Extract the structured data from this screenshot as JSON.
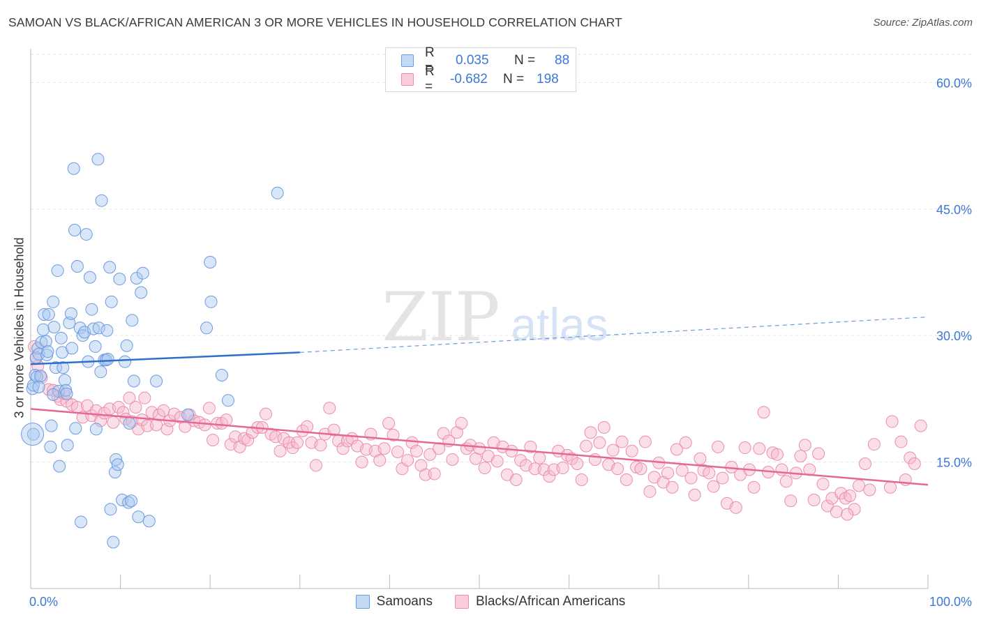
{
  "header": {
    "title": "SAMOAN VS BLACK/AFRICAN AMERICAN 3 OR MORE VEHICLES IN HOUSEHOLD CORRELATION CHART",
    "source": "Source: ZipAtlas.com"
  },
  "watermark": {
    "zip": "ZIP",
    "atlas": "atlas"
  },
  "legend": {
    "rows": [
      {
        "r_label": "R =",
        "r_value": "0.035",
        "n_label": "N =",
        "n_value": "88"
      },
      {
        "r_label": "R =",
        "r_value": "-0.682",
        "n_label": "N =",
        "n_value": "198"
      }
    ]
  },
  "bottom_legend": {
    "samoans": "Samoans",
    "blacks": "Blacks/African Americans"
  },
  "colors": {
    "samoan_fill": "#a9c8ef",
    "samoan_stroke": "#6a9be0",
    "samoan_line": "#2e6fcc",
    "black_fill": "#f6b8cb",
    "black_stroke": "#ec8dab",
    "black_line": "#e4679a",
    "tick_label": "#3b78d8",
    "grid": "#e2e2e2"
  },
  "chart_data": {
    "type": "scatter",
    "title": "SAMOAN VS BLACK/AFRICAN AMERICAN 3 OR MORE VEHICLES IN HOUSEHOLD CORRELATION CHART",
    "xlabel": "",
    "ylabel": "3 or more Vehicles in Household",
    "xlim": [
      0,
      100
    ],
    "ylim": [
      0,
      64
    ],
    "x_tick_labels": [
      "0.0%",
      "100.0%"
    ],
    "y_ticks": [
      15,
      30,
      45,
      60
    ],
    "y_tick_labels": [
      "15.0%",
      "30.0%",
      "45.0%",
      "60.0%"
    ],
    "grid": true,
    "series": [
      {
        "name": "Samoans",
        "r": 0.035,
        "n": 88,
        "trend": {
          "x0": 0,
          "y0": 26.6,
          "x1": 30,
          "y1": 28.0,
          "dashed_to_x": 100,
          "dashed_to_y": 32.2
        },
        "points": [
          [
            0.2,
            23.7
          ],
          [
            0.3,
            24.1
          ],
          [
            0.3,
            18.3
          ],
          [
            0.5,
            25.3
          ],
          [
            0.6,
            27.4
          ],
          [
            0.7,
            25.1
          ],
          [
            0.8,
            28.5
          ],
          [
            0.9,
            27.8
          ],
          [
            1.1,
            25.2
          ],
          [
            1.2,
            29.2
          ],
          [
            1.4,
            30.7
          ],
          [
            1.5,
            32.5
          ],
          [
            1.7,
            29.3
          ],
          [
            1.8,
            27.7
          ],
          [
            1.9,
            28.1
          ],
          [
            2.0,
            32.5
          ],
          [
            2.2,
            16.8
          ],
          [
            2.3,
            19.3
          ],
          [
            2.5,
            34.0
          ],
          [
            2.6,
            31.0
          ],
          [
            2.8,
            26.2
          ],
          [
            3.0,
            37.7
          ],
          [
            3.1,
            23.4
          ],
          [
            3.2,
            14.5
          ],
          [
            3.4,
            29.7
          ],
          [
            3.5,
            28.0
          ],
          [
            3.6,
            26.2
          ],
          [
            3.8,
            24.7
          ],
          [
            3.9,
            23.5
          ],
          [
            4.0,
            23.1
          ],
          [
            4.1,
            17.0
          ],
          [
            4.3,
            31.5
          ],
          [
            4.5,
            32.6
          ],
          [
            4.6,
            28.5
          ],
          [
            4.8,
            49.8
          ],
          [
            4.9,
            42.5
          ],
          [
            5.0,
            19.0
          ],
          [
            5.2,
            38.2
          ],
          [
            5.5,
            30.9
          ],
          [
            5.6,
            7.9
          ],
          [
            5.8,
            30.0
          ],
          [
            6.0,
            30.4
          ],
          [
            6.2,
            42.0
          ],
          [
            6.4,
            26.9
          ],
          [
            6.6,
            36.9
          ],
          [
            6.8,
            33.1
          ],
          [
            7.0,
            30.8
          ],
          [
            7.2,
            28.7
          ],
          [
            7.3,
            18.9
          ],
          [
            7.5,
            50.9
          ],
          [
            7.6,
            30.9
          ],
          [
            7.8,
            25.7
          ],
          [
            7.9,
            46.0
          ],
          [
            8.2,
            27.1
          ],
          [
            8.4,
            27.1
          ],
          [
            8.5,
            30.6
          ],
          [
            8.6,
            27.2
          ],
          [
            8.8,
            38.1
          ],
          [
            8.9,
            9.4
          ],
          [
            9.0,
            34.0
          ],
          [
            9.2,
            5.5
          ],
          [
            9.4,
            13.8
          ],
          [
            9.5,
            15.3
          ],
          [
            9.7,
            14.7
          ],
          [
            9.9,
            36.7
          ],
          [
            10.2,
            10.5
          ],
          [
            10.5,
            26.9
          ],
          [
            10.7,
            28.8
          ],
          [
            10.9,
            10.2
          ],
          [
            11.0,
            19.6
          ],
          [
            11.2,
            10.4
          ],
          [
            11.3,
            31.8
          ],
          [
            11.5,
            24.6
          ],
          [
            11.8,
            36.8
          ],
          [
            12.0,
            8.5
          ],
          [
            12.3,
            35.1
          ],
          [
            12.5,
            37.4
          ],
          [
            13.2,
            8.0
          ],
          [
            14.0,
            24.6
          ],
          [
            17.5,
            20.6
          ],
          [
            19.6,
            30.9
          ],
          [
            20.0,
            38.7
          ],
          [
            20.1,
            34.0
          ],
          [
            21.3,
            25.3
          ],
          [
            22.0,
            22.3
          ],
          [
            27.5,
            46.9
          ],
          [
            0.9,
            23.9
          ],
          [
            2.5,
            23.0
          ]
        ]
      },
      {
        "name": "Blacks/African Americans",
        "r": -0.682,
        "n": 198,
        "trend": {
          "x0": 0,
          "y0": 21.3,
          "x1": 100,
          "y1": 12.3
        },
        "points": [
          [
            0.4,
            28.7
          ],
          [
            0.6,
            27.3
          ],
          [
            0.8,
            26.4
          ],
          [
            1.2,
            25.0
          ],
          [
            2.0,
            23.6
          ],
          [
            2.5,
            23.5
          ],
          [
            3.0,
            22.8
          ],
          [
            3.3,
            22.4
          ],
          [
            3.7,
            23.1
          ],
          [
            4.0,
            22.2
          ],
          [
            4.6,
            21.8
          ],
          [
            5.2,
            21.5
          ],
          [
            5.8,
            20.3
          ],
          [
            6.3,
            21.7
          ],
          [
            6.8,
            20.5
          ],
          [
            7.3,
            21.1
          ],
          [
            7.8,
            19.9
          ],
          [
            8.2,
            20.8
          ],
          [
            8.8,
            21.3
          ],
          [
            9.2,
            19.7
          ],
          [
            9.8,
            21.5
          ],
          [
            10.3,
            20.9
          ],
          [
            10.6,
            20.1
          ],
          [
            11.0,
            22.6
          ],
          [
            11.3,
            19.8
          ],
          [
            11.7,
            21.5
          ],
          [
            12.0,
            18.9
          ],
          [
            12.4,
            20.0
          ],
          [
            12.7,
            22.6
          ],
          [
            13.0,
            19.3
          ],
          [
            13.5,
            20.9
          ],
          [
            14.0,
            19.4
          ],
          [
            14.3,
            20.6
          ],
          [
            14.8,
            21.1
          ],
          [
            15.2,
            18.9
          ],
          [
            15.5,
            19.9
          ],
          [
            16.0,
            20.7
          ],
          [
            16.7,
            20.3
          ],
          [
            17.2,
            19.2
          ],
          [
            17.7,
            20.6
          ],
          [
            18.2,
            19.9
          ],
          [
            18.8,
            19.7
          ],
          [
            19.4,
            19.4
          ],
          [
            19.9,
            21.4
          ],
          [
            20.3,
            17.6
          ],
          [
            20.8,
            19.6
          ],
          [
            21.3,
            19.6
          ],
          [
            21.8,
            20.0
          ],
          [
            22.3,
            17.1
          ],
          [
            22.8,
            18.0
          ],
          [
            23.3,
            16.8
          ],
          [
            23.8,
            17.8
          ],
          [
            24.2,
            17.6
          ],
          [
            24.7,
            18.5
          ],
          [
            25.3,
            19.1
          ],
          [
            25.8,
            19.1
          ],
          [
            26.2,
            20.7
          ],
          [
            26.8,
            18.3
          ],
          [
            27.3,
            18.0
          ],
          [
            27.8,
            16.3
          ],
          [
            28.2,
            17.8
          ],
          [
            28.8,
            17.3
          ],
          [
            29.2,
            16.7
          ],
          [
            29.7,
            17.3
          ],
          [
            30.3,
            18.7
          ],
          [
            30.8,
            19.2
          ],
          [
            31.3,
            17.3
          ],
          [
            31.8,
            14.6
          ],
          [
            32.3,
            17.0
          ],
          [
            32.8,
            18.3
          ],
          [
            33.3,
            21.4
          ],
          [
            33.8,
            18.8
          ],
          [
            34.3,
            17.5
          ],
          [
            34.8,
            16.6
          ],
          [
            35.3,
            17.5
          ],
          [
            35.8,
            17.8
          ],
          [
            36.4,
            16.9
          ],
          [
            36.9,
            15.0
          ],
          [
            37.4,
            16.5
          ],
          [
            37.9,
            18.3
          ],
          [
            38.4,
            16.3
          ],
          [
            38.9,
            15.2
          ],
          [
            39.4,
            16.6
          ],
          [
            39.9,
            19.6
          ],
          [
            40.4,
            18.2
          ],
          [
            40.9,
            16.2
          ],
          [
            41.4,
            14.2
          ],
          [
            42.0,
            15.2
          ],
          [
            42.5,
            17.3
          ],
          [
            43.0,
            16.3
          ],
          [
            43.5,
            14.6
          ],
          [
            44.0,
            13.5
          ],
          [
            44.5,
            15.9
          ],
          [
            45.0,
            13.6
          ],
          [
            45.5,
            16.6
          ],
          [
            46.0,
            18.4
          ],
          [
            46.6,
            17.5
          ],
          [
            47.0,
            15.3
          ],
          [
            47.5,
            18.5
          ],
          [
            48.0,
            19.6
          ],
          [
            48.6,
            16.6
          ],
          [
            49.0,
            17.0
          ],
          [
            49.6,
            15.4
          ],
          [
            50.0,
            16.6
          ],
          [
            50.6,
            14.3
          ],
          [
            51.0,
            15.7
          ],
          [
            51.6,
            17.3
          ],
          [
            52.0,
            15.1
          ],
          [
            52.6,
            16.8
          ],
          [
            53.1,
            13.5
          ],
          [
            53.6,
            16.3
          ],
          [
            54.1,
            12.9
          ],
          [
            54.6,
            15.2
          ],
          [
            55.2,
            14.6
          ],
          [
            55.7,
            16.8
          ],
          [
            56.2,
            14.2
          ],
          [
            56.7,
            15.5
          ],
          [
            57.2,
            14.1
          ],
          [
            57.8,
            13.3
          ],
          [
            58.3,
            14.1
          ],
          [
            58.8,
            16.3
          ],
          [
            59.3,
            14.3
          ],
          [
            59.8,
            15.8
          ],
          [
            60.3,
            15.4
          ],
          [
            60.9,
            14.8
          ],
          [
            61.4,
            12.9
          ],
          [
            61.9,
            16.9
          ],
          [
            62.4,
            18.5
          ],
          [
            62.9,
            15.3
          ],
          [
            63.4,
            17.3
          ],
          [
            63.9,
            19.1
          ],
          [
            64.4,
            14.7
          ],
          [
            64.9,
            16.4
          ],
          [
            65.4,
            14.2
          ],
          [
            65.9,
            17.4
          ],
          [
            66.4,
            12.9
          ],
          [
            67.0,
            16.3
          ],
          [
            67.5,
            14.4
          ],
          [
            68.0,
            14.2
          ],
          [
            68.5,
            17.4
          ],
          [
            69.0,
            11.5
          ],
          [
            69.5,
            13.2
          ],
          [
            70.0,
            14.9
          ],
          [
            70.5,
            12.6
          ],
          [
            71.0,
            13.7
          ],
          [
            71.5,
            12.0
          ],
          [
            72.0,
            16.5
          ],
          [
            72.6,
            14.0
          ],
          [
            73.0,
            17.3
          ],
          [
            73.6,
            13.1
          ],
          [
            74.0,
            11.1
          ],
          [
            74.6,
            15.4
          ],
          [
            75.0,
            14.0
          ],
          [
            75.6,
            13.7
          ],
          [
            76.1,
            12.1
          ],
          [
            76.6,
            16.8
          ],
          [
            77.1,
            13.1
          ],
          [
            77.6,
            10.1
          ],
          [
            78.1,
            14.4
          ],
          [
            78.6,
            9.6
          ],
          [
            79.1,
            13.5
          ],
          [
            79.6,
            16.7
          ],
          [
            80.1,
            14.1
          ],
          [
            80.6,
            12.0
          ],
          [
            81.2,
            16.6
          ],
          [
            81.7,
            20.9
          ],
          [
            82.2,
            13.8
          ],
          [
            82.7,
            16.1
          ],
          [
            83.2,
            15.9
          ],
          [
            83.7,
            14.1
          ],
          [
            84.2,
            12.7
          ],
          [
            84.7,
            10.4
          ],
          [
            85.3,
            13.7
          ],
          [
            85.8,
            15.7
          ],
          [
            86.3,
            17.0
          ],
          [
            86.8,
            14.1
          ],
          [
            87.3,
            10.5
          ],
          [
            87.8,
            16.0
          ],
          [
            88.3,
            12.4
          ],
          [
            88.8,
            9.8
          ],
          [
            89.3,
            10.7
          ],
          [
            89.8,
            9.1
          ],
          [
            90.3,
            11.3
          ],
          [
            90.8,
            10.7
          ],
          [
            91.3,
            11.0
          ],
          [
            91.8,
            9.4
          ],
          [
            92.3,
            12.2
          ],
          [
            93.0,
            14.8
          ],
          [
            94.0,
            17.1
          ],
          [
            96.0,
            19.8
          ],
          [
            97.0,
            17.4
          ],
          [
            98.0,
            15.5
          ],
          [
            98.5,
            14.8
          ],
          [
            99.2,
            19.3
          ],
          [
            97.5,
            12.9
          ],
          [
            95.8,
            12.0
          ],
          [
            93.5,
            11.7
          ],
          [
            91.0,
            8.8
          ]
        ]
      }
    ]
  }
}
